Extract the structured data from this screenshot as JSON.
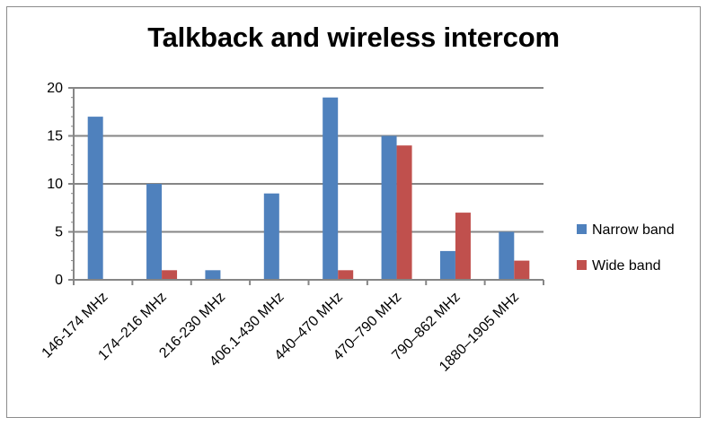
{
  "chart_data": {
    "type": "bar",
    "title": "Talkback and wireless intercom",
    "xlabel": "",
    "ylabel": "",
    "categories": [
      "146-174 MHz",
      "174–216 MHz",
      "216-230 MHz",
      "406.1-430 MHz",
      "440–470 MHz",
      "470–790 MHz",
      "790–862 MHz",
      "1880–1905 MHz"
    ],
    "series": [
      {
        "name": "Narrow band",
        "color": "#4f81bd",
        "values": [
          17,
          10,
          1,
          9,
          19,
          15,
          3,
          5
        ]
      },
      {
        "name": "Wide band",
        "color": "#c0504d",
        "values": [
          0,
          1,
          0,
          0,
          1,
          14,
          7,
          2
        ]
      }
    ],
    "ylim": [
      0,
      20
    ],
    "yticks": [
      "0",
      "5",
      "10",
      "15",
      "20"
    ],
    "grid": true,
    "legend_position": "right"
  }
}
